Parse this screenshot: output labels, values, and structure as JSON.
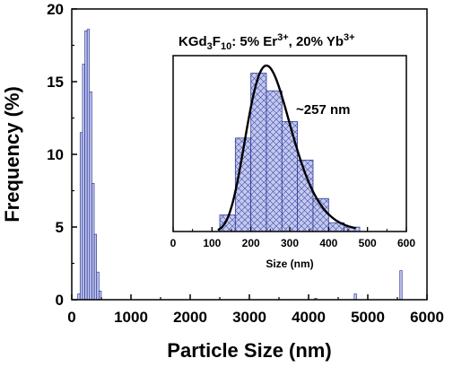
{
  "chart_data": [
    {
      "type": "bar",
      "xlabel": "Particle Size (nm)",
      "ylabel": "Frequency (%)",
      "xlim": [
        0,
        6000
      ],
      "ylim": [
        0,
        20
      ],
      "xticks": [
        "0",
        "1000",
        "2000",
        "3000",
        "4000",
        "5000",
        "6000"
      ],
      "yticks": [
        "0",
        "5",
        "10",
        "15",
        "20"
      ],
      "bin_width": 40,
      "bins": [
        {
          "x": 120,
          "y": 0.4
        },
        {
          "x": 160,
          "y": 11.5
        },
        {
          "x": 200,
          "y": 16.2
        },
        {
          "x": 240,
          "y": 18.5
        },
        {
          "x": 280,
          "y": 18.6
        },
        {
          "x": 320,
          "y": 14.3
        },
        {
          "x": 360,
          "y": 8.0
        },
        {
          "x": 400,
          "y": 4.5
        },
        {
          "x": 440,
          "y": 1.9
        },
        {
          "x": 480,
          "y": 0.6
        },
        {
          "x": 4120,
          "y": 0.1
        },
        {
          "x": 4790,
          "y": 0.4
        },
        {
          "x": 5560,
          "y": 2.0
        }
      ],
      "bar_fill": "#c5c9ee",
      "bar_stroke": "#2c3a9a"
    },
    {
      "type": "bar",
      "annotation": "KGd3F10: 5% Er3+, 20% Yb3+",
      "peak_label": "~257 nm",
      "xlabel": "Size (nm)",
      "ylabel": "",
      "xlim": [
        0,
        600
      ],
      "ylim": [
        0,
        16
      ],
      "xticks": [
        "0",
        "100",
        "200",
        "300",
        "400",
        "500",
        "600"
      ],
      "bin_width": 40,
      "bins": [
        {
          "x": 140,
          "y": 1.5
        },
        {
          "x": 180,
          "y": 8.5
        },
        {
          "x": 220,
          "y": 14.4
        },
        {
          "x": 260,
          "y": 12.8
        },
        {
          "x": 300,
          "y": 10.0
        },
        {
          "x": 340,
          "y": 6.5
        },
        {
          "x": 380,
          "y": 3.0
        },
        {
          "x": 420,
          "y": 0.8
        },
        {
          "x": 460,
          "y": 0.4
        }
      ],
      "fit_curve": {
        "type": "lognormal",
        "peak_x": 240,
        "peak_y": 15.1,
        "sigma": 0.24,
        "x_range": [
          115,
          470
        ]
      },
      "bar_fill": "#c5c9ee",
      "bar_stroke": "#2c3a9a",
      "curve_color": "#000000"
    }
  ]
}
